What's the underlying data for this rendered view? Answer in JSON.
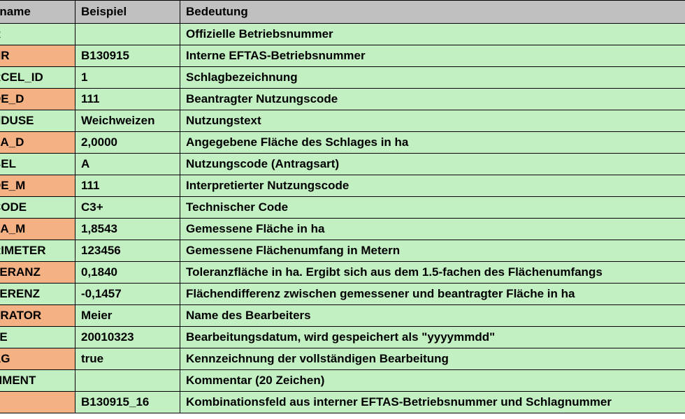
{
  "colors": {
    "header_bg": "#c0c0c0",
    "green_bg": "#c2f0c2",
    "orange_bg": "#f4b183",
    "text": "#000000",
    "border": "#000000"
  },
  "columns": [
    "dname",
    "Beispiel",
    "Bedeutung"
  ],
  "rows": [
    {
      "col_color": "green",
      "feld": "R",
      "beispiel": "",
      "bedeutung": "Offizielle Betriebsnummer"
    },
    {
      "col_color": "orange",
      "feld": "NR",
      "beispiel": "B130915",
      "bedeutung": "Interne EFTAS-Betriebsnummer"
    },
    {
      "col_color": "green",
      "feld": "RCEL_ID",
      "beispiel": "1",
      "bedeutung": "Schlagbezeichnung"
    },
    {
      "col_color": "orange",
      "feld": "DE_D",
      "beispiel": "111",
      "bedeutung": "Beantragter Nutzungscode"
    },
    {
      "col_color": "green",
      "feld": "NDUSE",
      "beispiel": "Weichweizen",
      "bedeutung": "Nutzungstext"
    },
    {
      "col_color": "orange",
      "feld": "EA_D",
      "beispiel": "2,0000",
      "bedeutung": "Angegebene Fläche des Schlages in ha"
    },
    {
      "col_color": "green",
      "feld": "BEL",
      "beispiel": "A",
      "bedeutung": "Nutzungscode (Antragsart)"
    },
    {
      "col_color": "orange",
      "feld": "DE_M",
      "beispiel": "111",
      "bedeutung": "Interpretierter Nutzungscode"
    },
    {
      "col_color": "green",
      "feld": "CODE",
      "beispiel": "C3+",
      "bedeutung": "Technischer Code"
    },
    {
      "col_color": "orange",
      "feld": "EA_M",
      "beispiel": "1,8543",
      "bedeutung": "Gemessene Fläche in ha"
    },
    {
      "col_color": "green",
      "feld": "RIMETER",
      "beispiel": "123456",
      "bedeutung": "Gemessene Flächenumfang in Metern"
    },
    {
      "col_color": "orange",
      "feld": "LERANZ",
      "beispiel": "0,1840",
      "bedeutung": "Toleranzfläche in ha. Ergibt sich aus dem 1.5-fachen des Flächenumfangs"
    },
    {
      "col_color": "green",
      "feld": "FERENZ",
      "beispiel": "-0,1457",
      "bedeutung": "Flächendifferenz zwischen gemessener und beantragter Fläche in ha"
    },
    {
      "col_color": "orange",
      "feld": "ERATOR",
      "beispiel": "Meier",
      "bedeutung": "Name des Bearbeiters"
    },
    {
      "col_color": "green",
      "feld": "TE",
      "beispiel": "20010323",
      "bedeutung": "Bearbeitungsdatum, wird gespeichert als \"yyyymmdd\""
    },
    {
      "col_color": "orange",
      "feld": "AG",
      "beispiel": "true",
      "bedeutung": "Kennzeichnung der vollständigen Bearbeitung"
    },
    {
      "col_color": "green",
      "feld": "MMENT",
      "beispiel": "",
      "bedeutung": "Kommentar (20 Zeichen)"
    },
    {
      "col_color": "orange",
      "feld": "",
      "beispiel": "B130915_16",
      "bedeutung": "Kombinationsfeld aus interner EFTAS-Betriebsnummer und Schlagnummer"
    }
  ]
}
